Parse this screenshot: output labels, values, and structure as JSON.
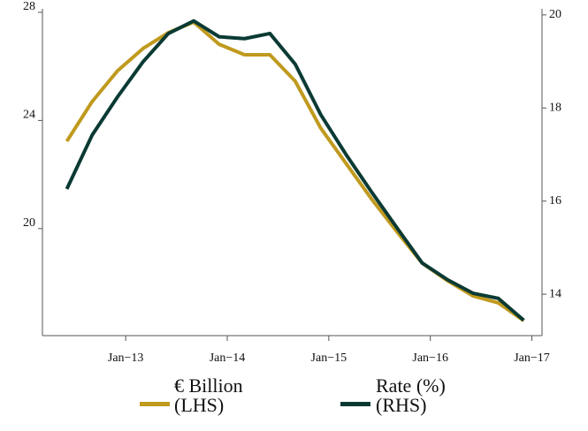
{
  "chart_data": {
    "type": "line",
    "x": [
      2012.42,
      2012.67,
      2012.92,
      2013.17,
      2013.42,
      2013.67,
      2013.92,
      2014.17,
      2014.42,
      2014.67,
      2014.92,
      2015.17,
      2015.42,
      2015.67,
      2015.92,
      2016.17,
      2016.42,
      2016.67,
      2016.92
    ],
    "series": [
      {
        "name": "€ Billion (LHS)",
        "color": "#c09a1e",
        "axis": "y",
        "values": [
          23.23,
          24.7,
          25.84,
          26.66,
          27.25,
          27.64,
          26.82,
          26.43,
          26.43,
          25.45,
          23.72,
          22.41,
          21.1,
          19.89,
          18.72,
          18.07,
          17.51,
          17.25,
          16.59
        ]
      },
      {
        "name": "Rate (%) (RHS)",
        "color": "#0b3a34",
        "axis": "y2",
        "values": [
          16.26,
          17.42,
          18.24,
          18.99,
          19.6,
          19.87,
          19.53,
          19.49,
          19.6,
          18.94,
          17.86,
          17.0,
          16.2,
          15.43,
          14.67,
          14.31,
          14.02,
          13.91,
          13.44
        ]
      }
    ],
    "xlim": [
      2012.18,
      2017.1
    ],
    "xticks": [
      {
        "value": 2013,
        "label": "Jan−13"
      },
      {
        "value": 2014,
        "label": "Jan−14"
      },
      {
        "value": 2015,
        "label": "Jan−15"
      },
      {
        "value": 2016,
        "label": "Jan−16"
      },
      {
        "value": 2017,
        "label": "Jan−17"
      }
    ],
    "ylim": [
      16.04,
      28.13
    ],
    "yticks": [
      20,
      24,
      28
    ],
    "y2lim": [
      13.11,
      20.13
    ],
    "y2ticks": [
      14,
      16,
      18,
      20
    ],
    "grid": false,
    "legend": "bottom"
  }
}
